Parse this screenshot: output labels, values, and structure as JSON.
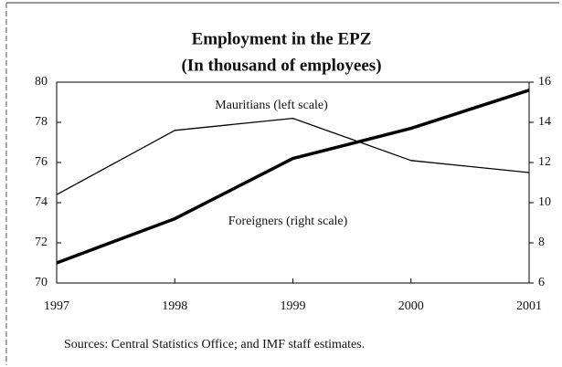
{
  "chart_data": {
    "type": "line",
    "title": "Employment in the EPZ",
    "subtitle": "(In thousand of employees)",
    "categories": [
      "1997",
      "1998",
      "1999",
      "2000",
      "2001"
    ],
    "series": [
      {
        "name": "Mauritians (left scale)",
        "color": "#000000",
        "values": [
          74.4,
          77.6,
          78.2,
          76.1,
          75.5
        ]
      },
      {
        "name": "Foreigners (right scale)",
        "color": "#000000",
        "axis": "y2",
        "values": [
          7.0,
          9.2,
          12.2,
          13.7,
          15.6
        ]
      }
    ],
    "ylim": [
      70,
      80
    ],
    "yticks": [
      70,
      72,
      74,
      76,
      78,
      80
    ],
    "y2lim": [
      6,
      16
    ],
    "y2ticks": [
      6,
      8,
      10,
      12,
      14,
      16
    ],
    "source": "Sources: Central Statistics Office; and IMF staff estimates."
  }
}
